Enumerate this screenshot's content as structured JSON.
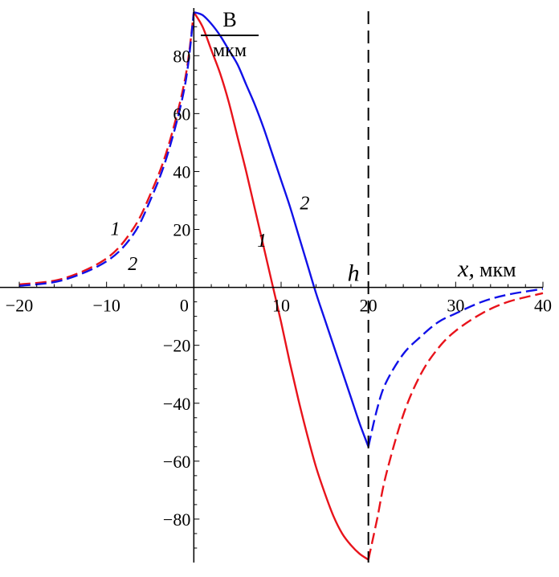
{
  "chart_data": {
    "type": "line",
    "title": "",
    "ylabel": {
      "numerator": "B",
      "denominator": "мкм"
    },
    "xlabel": {
      "variable": "x,",
      "unit": "мкм"
    },
    "xlim": [
      -20,
      40
    ],
    "ylim": [
      -95,
      97
    ],
    "x_ticks": [
      -20,
      -10,
      0,
      10,
      20,
      30,
      40
    ],
    "x_tick_labels": [
      "−20",
      "−10",
      "0",
      "10",
      "20",
      "30",
      "40"
    ],
    "y_ticks": [
      -80,
      -60,
      -40,
      -20,
      20,
      40,
      60,
      80
    ],
    "y_tick_labels": [
      "−80",
      "−60",
      "−40",
      "−20",
      "20",
      "40",
      "60",
      "80"
    ],
    "grid": false,
    "vertical_line": {
      "x": 20,
      "label": "h",
      "style": "dashed"
    },
    "series": [
      {
        "name": "1",
        "color": "#e8131b",
        "segments": [
          {
            "style": "dashed",
            "x": [
              -20,
              -15,
              -10,
              -7,
              -5,
              -3,
              -1,
              0
            ],
            "y": [
              1,
              3,
              10,
              20,
              32,
              48,
              72,
              95
            ]
          },
          {
            "style": "solid",
            "x": [
              0,
              1,
              2,
              3,
              4,
              5,
              6,
              7,
              8,
              9,
              10,
              11,
              12,
              13,
              14,
              15,
              16,
              17,
              18,
              19,
              20
            ],
            "y": [
              95,
              90,
              82,
              74,
              64,
              52,
              40,
              27,
              14,
              1,
              -12,
              -26,
              -39,
              -51,
              -62,
              -71,
              -79,
              -85,
              -89,
              -92,
              -94
            ]
          },
          {
            "style": "dashed",
            "x": [
              20,
              21,
              22,
              24,
              26,
              28,
              30,
              33,
              36,
              40
            ],
            "y": [
              -94,
              -80,
              -65,
              -44,
              -30,
              -21,
              -15,
              -9,
              -5,
              -2
            ]
          }
        ],
        "label_positions": [
          {
            "x": -9,
            "y": 18
          },
          {
            "x": 7.8,
            "y": 14
          }
        ]
      },
      {
        "name": "2",
        "color": "#1111e8",
        "segments": [
          {
            "style": "dashed",
            "x": [
              -20,
              -15,
              -10,
              -7,
              -5,
              -3,
              -1,
              0
            ],
            "y": [
              0.5,
              2.5,
              9,
              18,
              30,
              46,
              70,
              95
            ]
          },
          {
            "style": "solid",
            "x": [
              0,
              1,
              2,
              3,
              4,
              5,
              6,
              7,
              8,
              9,
              10,
              11,
              12,
              13,
              14,
              15,
              16,
              17,
              18,
              19,
              20
            ],
            "y": [
              95,
              94,
              91,
              87,
              82,
              77,
              70,
              63,
              55,
              46,
              37,
              28,
              18,
              8,
              -2,
              -11,
              -20,
              -29,
              -38,
              -47,
              -55
            ]
          },
          {
            "style": "dashed",
            "x": [
              20,
              21,
              22,
              24,
              26,
              28,
              30,
              33,
              36,
              40
            ],
            "y": [
              -55,
              -42,
              -33,
              -23,
              -17,
              -12,
              -9,
              -5,
              -2.5,
              -0.5
            ]
          }
        ],
        "label_positions": [
          {
            "x": -7,
            "y": 6
          },
          {
            "x": 12.7,
            "y": 27
          }
        ]
      }
    ]
  }
}
